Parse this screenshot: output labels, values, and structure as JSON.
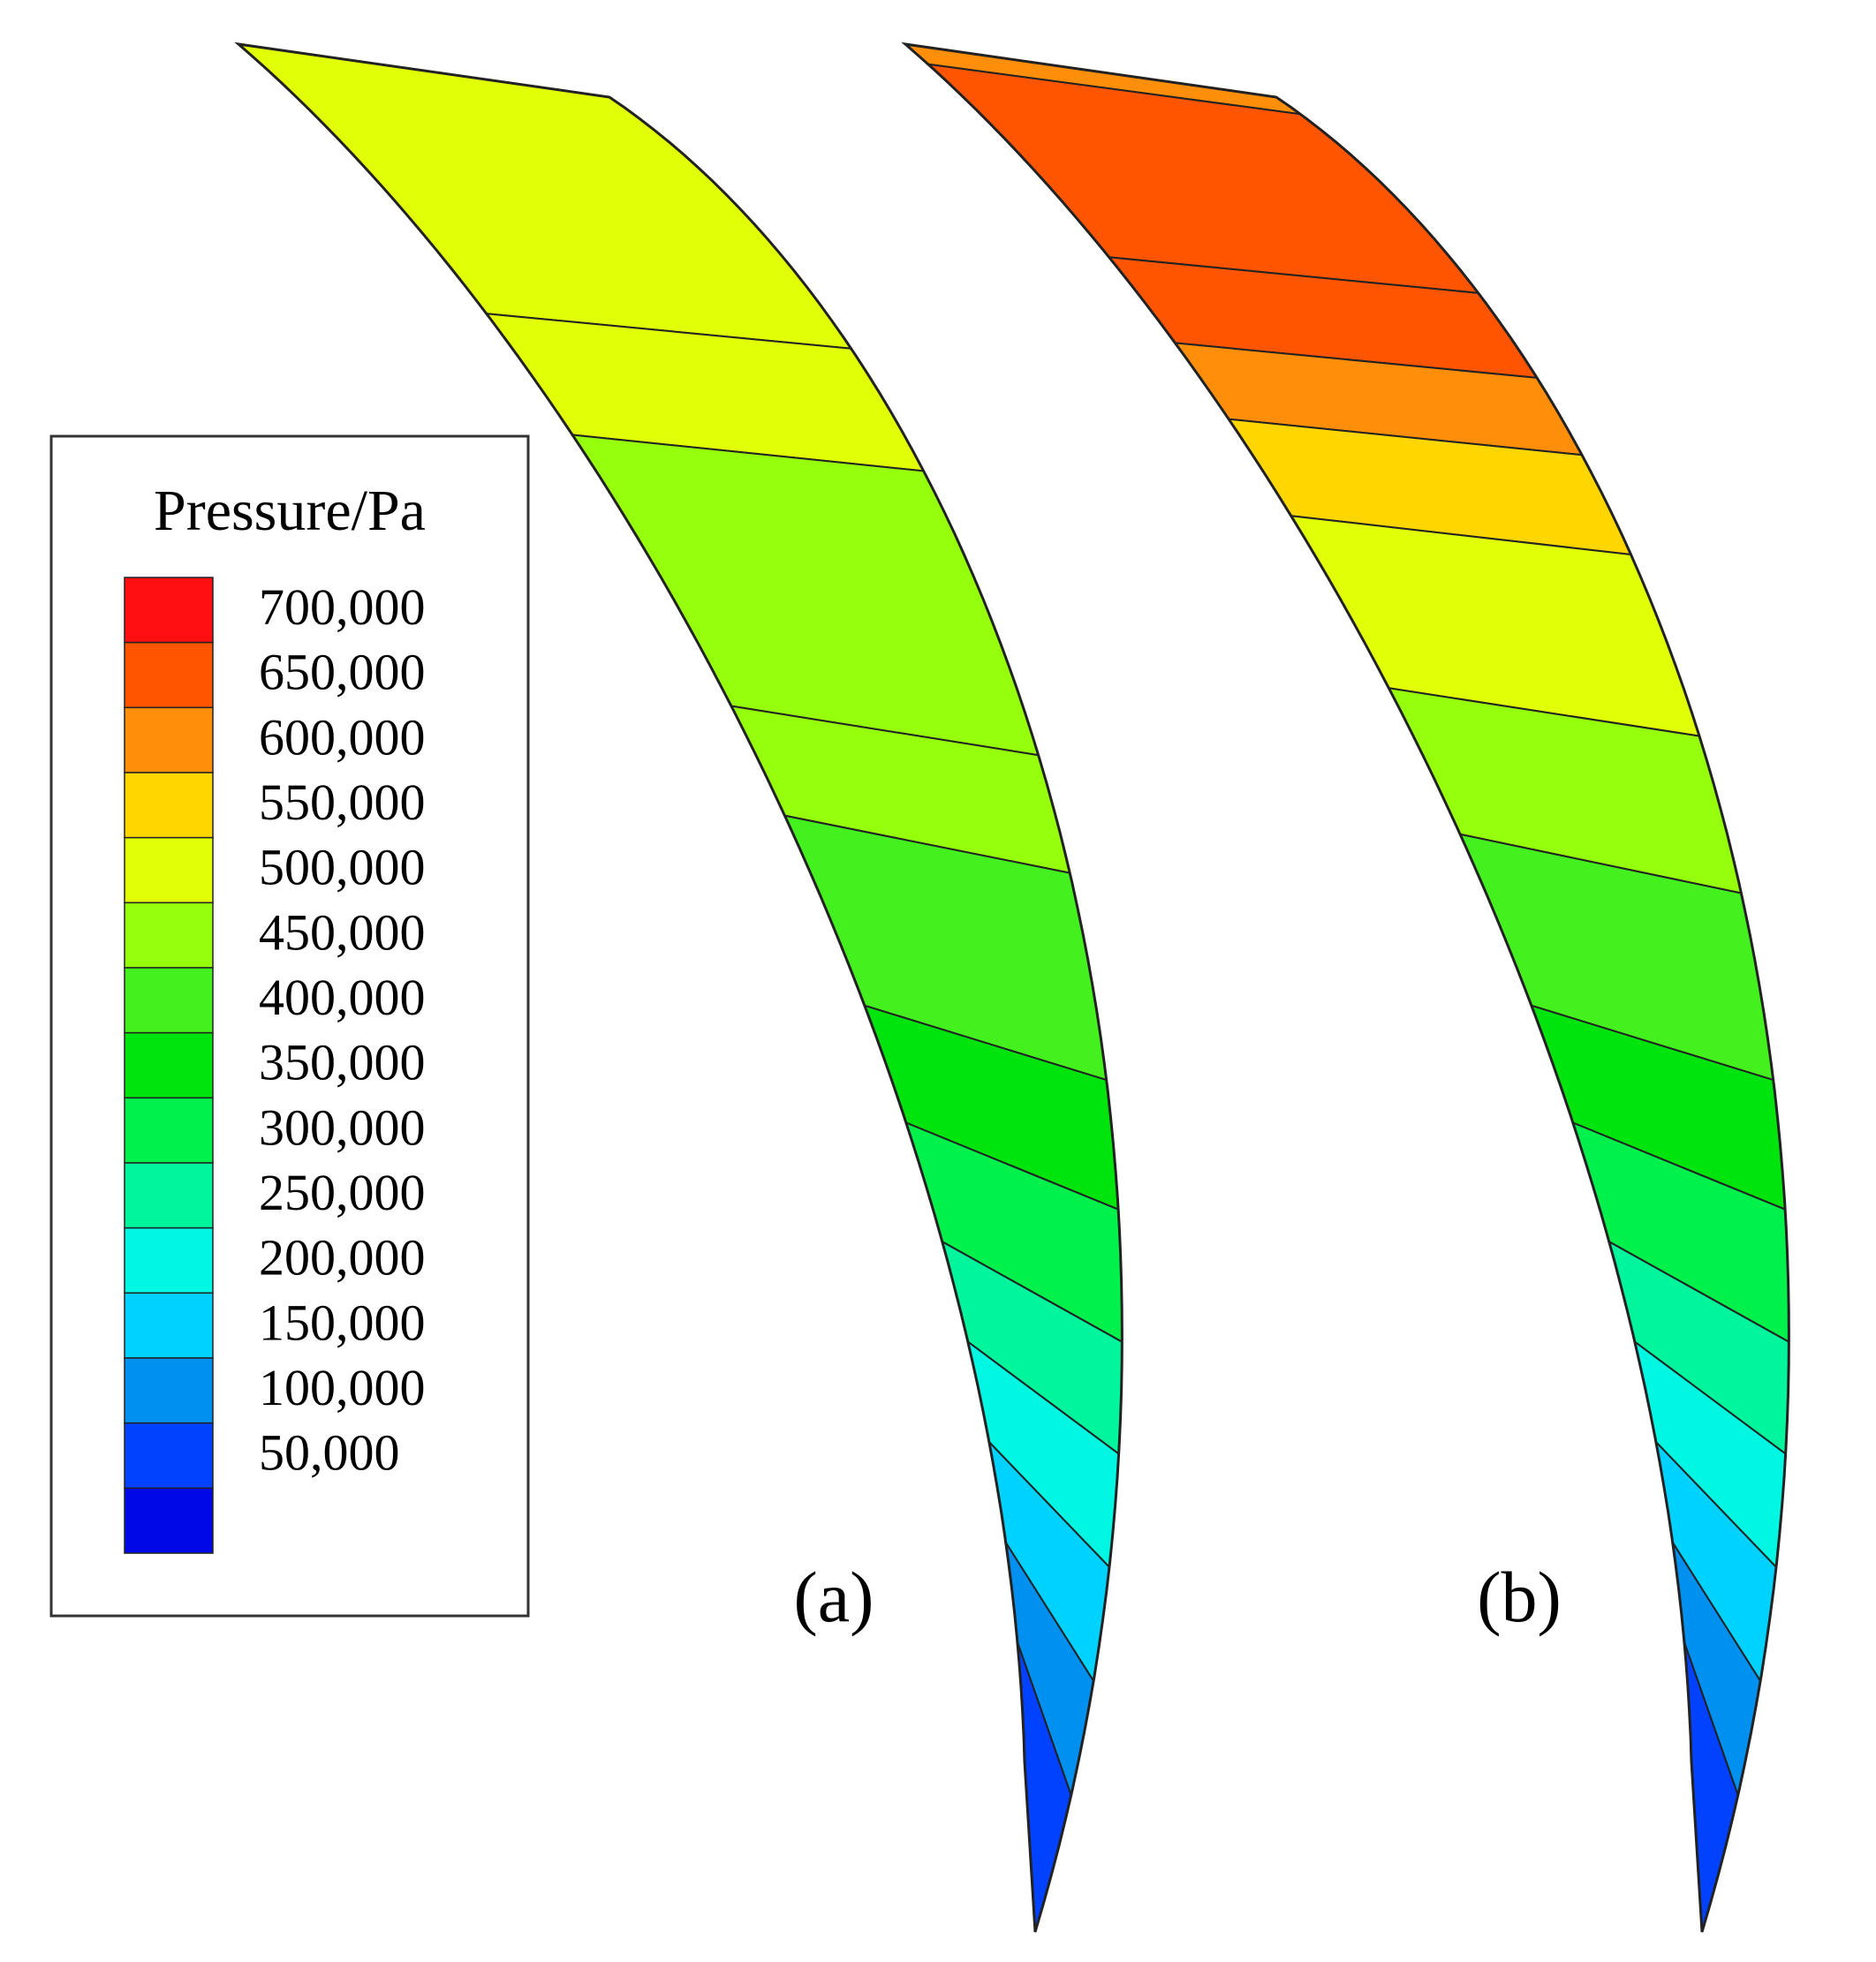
{
  "legend": {
    "title": "Pressure/Pa",
    "unit": "Pa",
    "bands": [
      {
        "value": 700000,
        "label": "700,000",
        "color": "#ff0f12"
      },
      {
        "value": 650000,
        "label": "650,000",
        "color": "#ff5500"
      },
      {
        "value": 600000,
        "label": "600,000",
        "color": "#ff8f0a"
      },
      {
        "value": 550000,
        "label": "550,000",
        "color": "#ffd600"
      },
      {
        "value": 500000,
        "label": "500,000",
        "color": "#e1ff07"
      },
      {
        "value": 450000,
        "label": "450,000",
        "color": "#95ff0c"
      },
      {
        "value": 400000,
        "label": "400,000",
        "color": "#44f01e"
      },
      {
        "value": 350000,
        "label": "350,000",
        "color": "#00e40e"
      },
      {
        "value": 300000,
        "label": "300,000",
        "color": "#00f04c"
      },
      {
        "value": 250000,
        "label": "250,000",
        "color": "#00f59c"
      },
      {
        "value": 200000,
        "label": "200,000",
        "color": "#00f8e2"
      },
      {
        "value": 150000,
        "label": "150,000",
        "color": "#00d2ff"
      },
      {
        "value": 100000,
        "label": "100,000",
        "color": "#0090f0"
      },
      {
        "value": 50000,
        "label": "50,000",
        "color": "#0042ff"
      },
      {
        "value": 0,
        "label": "",
        "color": "#0008e8"
      }
    ]
  },
  "panels": [
    {
      "id": "a",
      "label": "(a)",
      "field": [
        {
          "t": 0.0,
          "value": 500000
        },
        {
          "t": 0.22,
          "value": 500000
        },
        {
          "t": 0.3,
          "value": 450000
        },
        {
          "t": 0.46,
          "value": 450000
        },
        {
          "t": 0.52,
          "value": 400000
        },
        {
          "t": 0.62,
          "value": 350000
        },
        {
          "t": 0.68,
          "value": 300000
        },
        {
          "t": 0.74,
          "value": 250000
        },
        {
          "t": 0.79,
          "value": 200000
        },
        {
          "t": 0.84,
          "value": 150000
        },
        {
          "t": 0.89,
          "value": 100000
        },
        {
          "t": 0.94,
          "value": 50000
        },
        {
          "t": 1.0,
          "value": 0
        }
      ]
    },
    {
      "id": "b",
      "label": "(b)",
      "field": [
        {
          "t": 0.0,
          "value": 600000
        },
        {
          "t": 0.02,
          "value": 650000
        },
        {
          "t": 0.18,
          "value": 650000
        },
        {
          "t": 0.24,
          "value": 600000
        },
        {
          "t": 0.29,
          "value": 550000
        },
        {
          "t": 0.35,
          "value": 500000
        },
        {
          "t": 0.45,
          "value": 450000
        },
        {
          "t": 0.53,
          "value": 400000
        },
        {
          "t": 0.62,
          "value": 350000
        },
        {
          "t": 0.68,
          "value": 300000
        },
        {
          "t": 0.74,
          "value": 250000
        },
        {
          "t": 0.79,
          "value": 200000
        },
        {
          "t": 0.84,
          "value": 150000
        },
        {
          "t": 0.89,
          "value": 100000
        },
        {
          "t": 0.94,
          "value": 50000
        },
        {
          "t": 1.0,
          "value": 0
        }
      ]
    }
  ]
}
